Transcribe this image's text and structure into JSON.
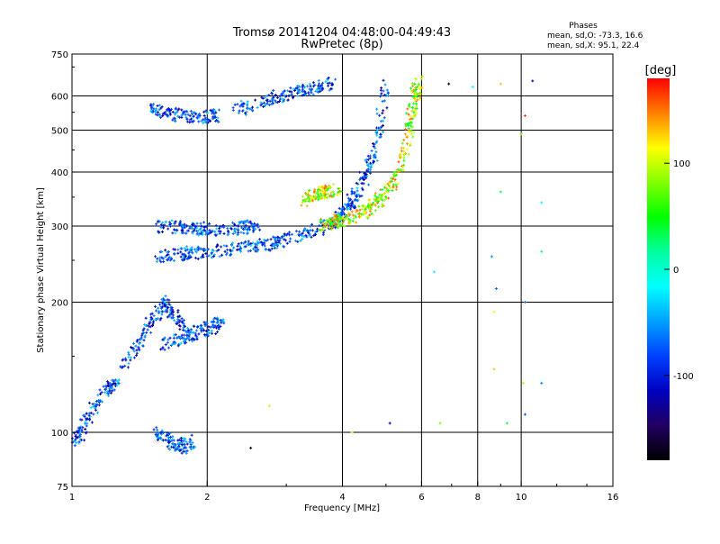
{
  "chart_data": {
    "type": "scatter",
    "title": "Tromsø 20141204 04:48:00-04:49:43",
    "subtitle": "RwPretec (8p)",
    "stats": {
      "heading": "Phases",
      "line_o": "mean, sd,O: -73.3, 16.6",
      "line_x": "mean, sd,X:  95.1, 22.4"
    },
    "xlabel": "Frequency [MHz]",
    "ylabel": "Stationary phase Virtual Height [km]",
    "x_scale": "log",
    "y_scale": "log",
    "xlim": [
      1,
      16
    ],
    "ylim": [
      75,
      750
    ],
    "x_ticks": [
      1,
      2,
      4,
      6,
      8,
      10,
      16
    ],
    "x_tick_labels": [
      "1",
      "2",
      "4",
      "6",
      "8",
      "10",
      "16"
    ],
    "y_ticks": [
      75,
      100,
      200,
      300,
      400,
      500,
      600,
      750
    ],
    "y_tick_labels": [
      "75",
      "100",
      "200",
      "300",
      "400",
      "500",
      "600",
      "750"
    ],
    "grid_x": [
      2,
      4,
      6,
      8,
      10
    ],
    "grid_y": [
      100,
      200,
      300,
      400,
      500,
      600
    ],
    "grid": true,
    "colorbar": {
      "label": "[deg]",
      "range": [
        -180,
        180
      ],
      "ticks": [
        100,
        0,
        -100
      ],
      "tick_labels": [
        "100",
        "0",
        "-100"
      ],
      "colors": [
        "#ff0000",
        "#ff8000",
        "#ffff00",
        "#80ff00",
        "#00ff00",
        "#00ffa0",
        "#00ffff",
        "#00a0ff",
        "#0040ff",
        "#0000c0",
        "#200060",
        "#000000"
      ]
    },
    "series": [
      {
        "polarization": "O",
        "phase_deg_range": [
          -130,
          -30
        ],
        "traces": [
          {
            "x": [
              1.55,
              1.7,
              1.85,
              2.0,
              2.2,
              2.5,
              2.7,
              2.9,
              3.1,
              3.4,
              3.7,
              3.9,
              4.1,
              4.3,
              4.5,
              4.7,
              4.85,
              5.0
            ],
            "y": [
              255,
              258,
              260,
              262,
              264,
              268,
              272,
              276,
              282,
              290,
              300,
              312,
              330,
              355,
              390,
              440,
              520,
              640
            ]
          },
          {
            "x": [
              1.55,
              1.7,
              1.85,
              2.0,
              2.2,
              2.4,
              2.6
            ],
            "y": [
              300,
              298,
              296,
              295,
              295,
              297,
              300
            ]
          },
          {
            "x": [
              1.5,
              1.65,
              1.8,
              1.95,
              2.1
            ],
            "y": [
              560,
              545,
              540,
              535,
              540
            ]
          },
          {
            "x": [
              2.3,
              2.6,
              2.9,
              3.2,
              3.5,
              3.8
            ],
            "y": [
              550,
              580,
              600,
              615,
              630,
              640
            ]
          },
          {
            "x": [
              1.3,
              1.4,
              1.5,
              1.6,
              1.7,
              1.8
            ],
            "y": [
              140,
              160,
              180,
              200,
              185,
              170
            ]
          },
          {
            "x": [
              1.6,
              1.75,
              1.9,
              2.05,
              2.15
            ],
            "y": [
              160,
              165,
              170,
              175,
              180
            ]
          },
          {
            "x": [
              1.0,
              1.05,
              1.1,
              1.2,
              1.25
            ],
            "y": [
              95,
              100,
              110,
              125,
              130
            ]
          },
          {
            "x": [
              1.55,
              1.65,
              1.75,
              1.85
            ],
            "y": [
              100,
              95,
              92,
              96
            ]
          }
        ]
      },
      {
        "polarization": "X",
        "phase_deg_range": [
          30,
          160
        ],
        "traces": [
          {
            "x": [
              3.6,
              3.8,
              4.0,
              4.3,
              4.6,
              4.9,
              5.2,
              5.4,
              5.6,
              5.7,
              5.8,
              5.9
            ],
            "y": [
              300,
              305,
              310,
              318,
              330,
              350,
              380,
              420,
              480,
              540,
              600,
              650
            ]
          },
          {
            "x": [
              3.3,
              3.5,
              3.7,
              3.9
            ],
            "y": [
              345,
              355,
              360,
              365
            ]
          }
        ]
      },
      {
        "polarization": "noise",
        "phase_deg_range": [
          -180,
          180
        ],
        "points": [
          [
            8.6,
            255
          ],
          [
            8.8,
            215
          ],
          [
            8.7,
            190
          ],
          [
            9.0,
            360
          ],
          [
            10.2,
            200
          ],
          [
            10.0,
            490
          ],
          [
            10.2,
            540
          ],
          [
            11.1,
            340
          ],
          [
            11.1,
            262
          ],
          [
            10.2,
            110
          ],
          [
            9.3,
            105
          ],
          [
            6.6,
            105
          ],
          [
            5.1,
            105
          ],
          [
            2.75,
            115
          ],
          [
            2.5,
            92
          ],
          [
            6.4,
            235
          ],
          [
            9.0,
            640
          ],
          [
            10.6,
            650
          ],
          [
            8.7,
            140
          ],
          [
            10.1,
            130
          ],
          [
            11.1,
            130
          ],
          [
            7.8,
            630
          ],
          [
            6.9,
            640
          ],
          [
            4.2,
            100
          ]
        ]
      }
    ]
  }
}
